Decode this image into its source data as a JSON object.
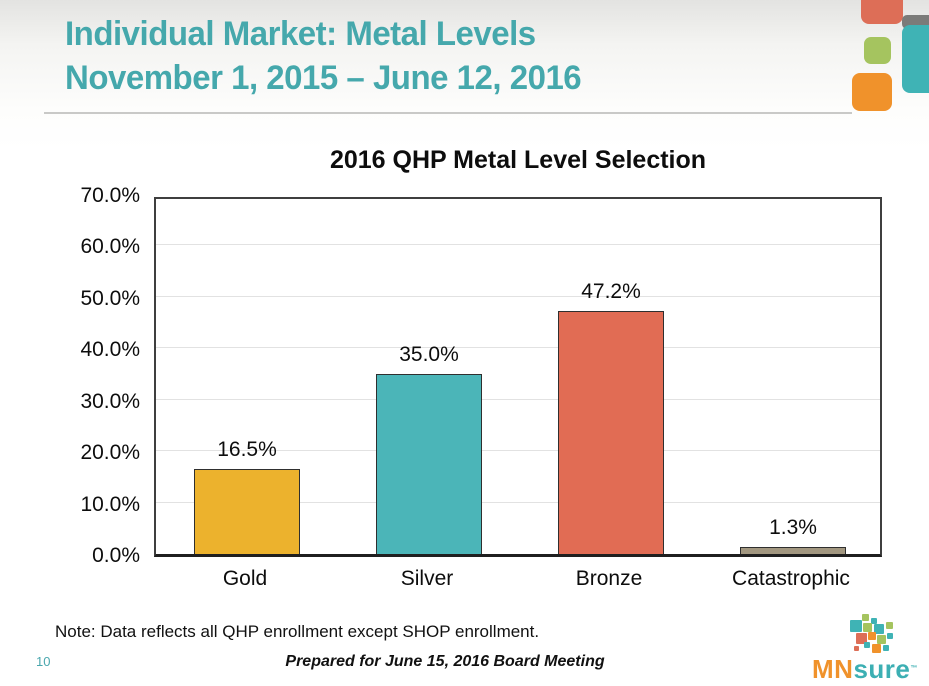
{
  "slide": {
    "title_line1": "Individual Market: Metal Levels",
    "title_line2": "November 1, 2015 – June 12, 2016",
    "note": "Note: Data reflects all QHP enrollment except SHOP enrollment.",
    "page_number": "10",
    "footer": "Prepared for June 15, 2016 Board Meeting"
  },
  "logo": {
    "mn": "MN",
    "sure": "sure",
    "tm": "™"
  },
  "colors": {
    "title_teal": "#45a8ac",
    "accent_salmon": "#dd6e57",
    "accent_teal": "#3fb3b5",
    "accent_green": "#a5c45f",
    "accent_orange": "#f0922b",
    "accent_gray": "#7b7b79"
  },
  "chart_data": {
    "type": "bar",
    "title": "2016 QHP Metal Level Selection",
    "categories": [
      "Gold",
      "Silver",
      "Bronze",
      "Catastrophic"
    ],
    "values": [
      16.5,
      35.0,
      47.2,
      1.3
    ],
    "value_labels": [
      "16.5%",
      "35.0%",
      "47.2%",
      "1.3%"
    ],
    "bar_colors": [
      "#ecb22d",
      "#4bb5b8",
      "#e16c54",
      "#a29780"
    ],
    "xlabel": "",
    "ylabel": "",
    "ylim": [
      0,
      70
    ],
    "ytick_interval": 10,
    "ytick_labels": [
      "0.0%",
      "10.0%",
      "20.0%",
      "30.0%",
      "40.0%",
      "50.0%",
      "60.0%",
      "70.0%"
    ],
    "grid": true,
    "legend": "none"
  }
}
